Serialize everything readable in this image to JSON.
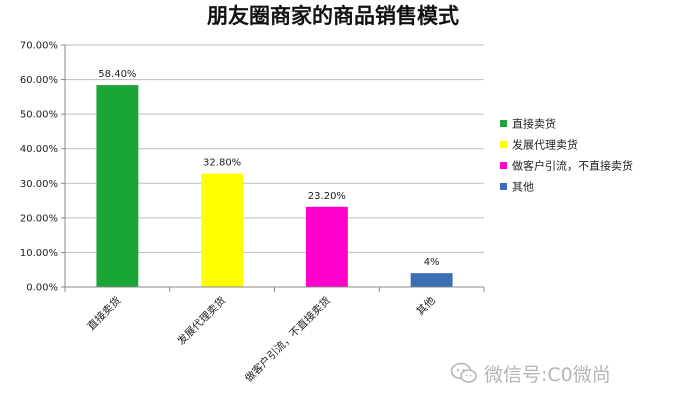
{
  "chart_data": {
    "type": "bar",
    "title": "朋友圈商家的商品销售模式",
    "categories": [
      "直接卖货",
      "发展代理卖货",
      "做客户引流，不直接卖货",
      "其他"
    ],
    "values": [
      58.4,
      32.8,
      23.2,
      4
    ],
    "data_labels": [
      "58.40%",
      "32.80%",
      "23.20%",
      "4%"
    ],
    "colors": [
      "#1aa637",
      "#ffff00",
      "#ff00cc",
      "#3a6eb5"
    ],
    "ylim": [
      0,
      70
    ],
    "yticks": [
      0,
      10,
      20,
      30,
      40,
      50,
      60,
      70
    ],
    "ytick_labels": [
      "0.00%",
      "10.00%",
      "20.00%",
      "30.00%",
      "40.00%",
      "50.00%",
      "60.00%",
      "70.00%"
    ],
    "grid": true,
    "legend": {
      "position": "right",
      "entries": [
        "直接卖货",
        "发展代理卖货",
        "做客户引流，不直接卖货",
        "其他"
      ]
    }
  },
  "watermark": {
    "text": "微信号:C0微尚"
  }
}
